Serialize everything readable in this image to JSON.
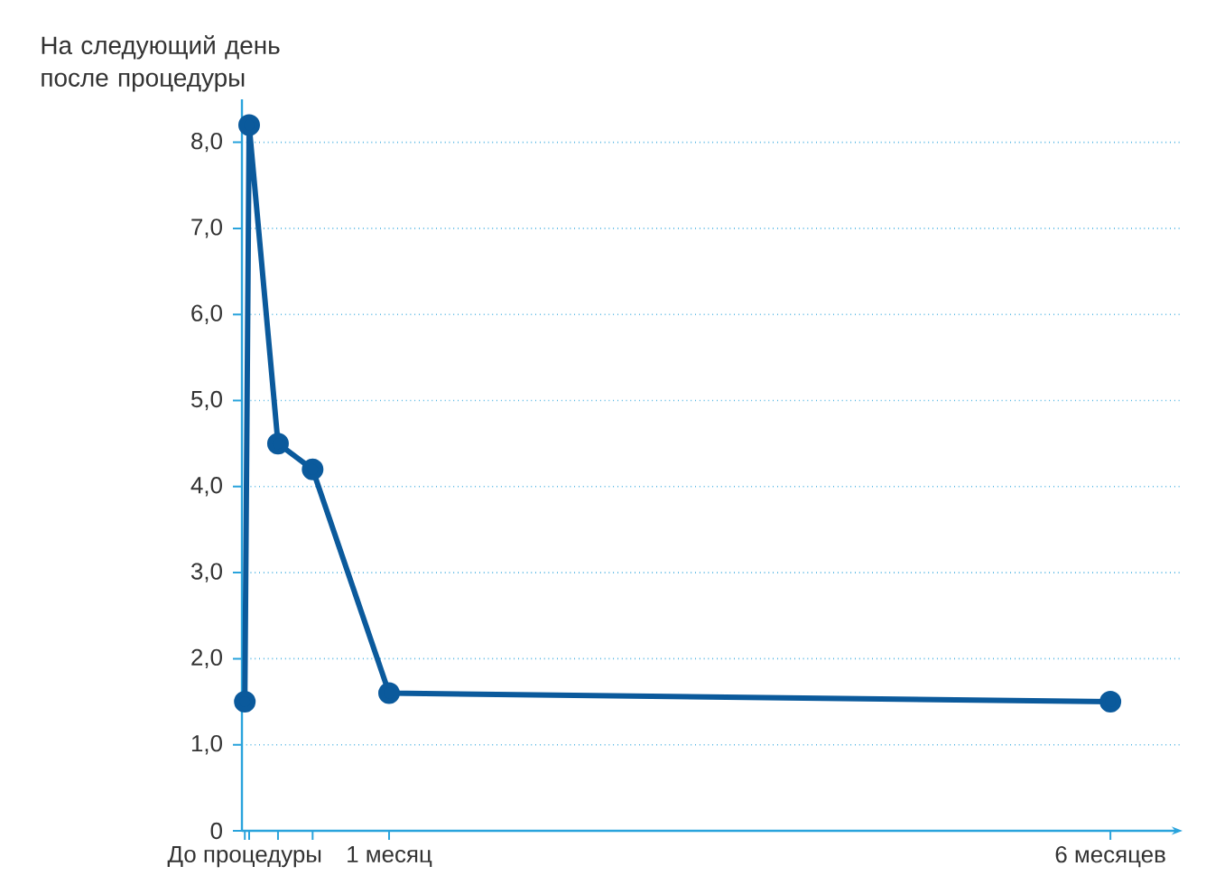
{
  "chart_data": {
    "type": "line",
    "x": [
      0,
      0.03,
      0.23,
      0.47,
      1,
      6
    ],
    "series": [
      {
        "color": "#0b5a9c",
        "values": [
          1.5,
          8.2,
          4.5,
          4.2,
          1.6,
          1.5
        ]
      }
    ],
    "xlim": [
      -0.02,
      6.5
    ],
    "ylim": [
      0,
      8.5
    ],
    "xticks": [
      {
        "value": 0,
        "label": "До процедуры"
      },
      {
        "value": 0.03,
        "label": null
      },
      {
        "value": 0.23,
        "label": null
      },
      {
        "value": 0.47,
        "label": null
      },
      {
        "value": 1,
        "label": "1 месяц"
      },
      {
        "value": 6,
        "label": "6 месяцев"
      }
    ],
    "yticks": [
      0,
      {
        "value": 1,
        "label": "1,0"
      },
      {
        "value": 2,
        "label": "2,0"
      },
      {
        "value": 3,
        "label": "3,0"
      },
      {
        "value": 4,
        "label": "4,0"
      },
      {
        "value": 5,
        "label": "5,0"
      },
      {
        "value": 6,
        "label": "6,0"
      },
      {
        "value": 7,
        "label": "7,0"
      },
      {
        "value": 8,
        "label": "8,0"
      }
    ],
    "grid": "y",
    "marker": "circle",
    "line_style": "solid",
    "annotations": [
      "На следующий день после процедуры"
    ]
  }
}
